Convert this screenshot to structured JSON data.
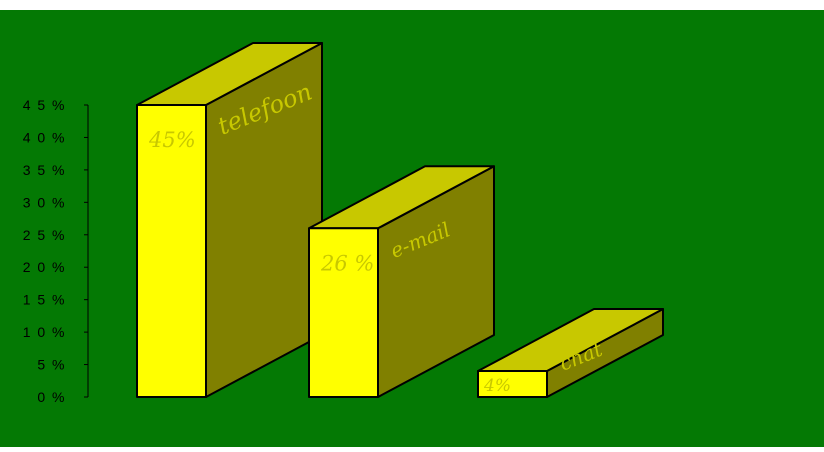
{
  "colors": {
    "background": "#047904",
    "bar_front": "#ffff00",
    "bar_top": "#c8c800",
    "bar_side": "#808000",
    "outline": "#000000",
    "label_text": "#c8c800"
  },
  "chart_data": {
    "type": "bar",
    "style": "3d",
    "categories": [
      "telefoon",
      "e-mail",
      "chat"
    ],
    "values": [
      45,
      26,
      4
    ],
    "value_labels": [
      "45%",
      "26 %",
      "4%"
    ],
    "ylim": [
      0,
      45
    ],
    "yticks": [
      {
        "value": 0,
        "label": "0 %"
      },
      {
        "value": 5,
        "label": "5 %"
      },
      {
        "value": 10,
        "label": "1 0 %"
      },
      {
        "value": 15,
        "label": "1 5 %"
      },
      {
        "value": 20,
        "label": "2 0 %"
      },
      {
        "value": 25,
        "label": "2 5 %"
      },
      {
        "value": 30,
        "label": "3 0 %"
      },
      {
        "value": 35,
        "label": "3 5 %"
      },
      {
        "value": 40,
        "label": "4 0 %"
      },
      {
        "value": 45,
        "label": "4 5 %"
      }
    ],
    "title": "",
    "xlabel": "",
    "ylabel": "",
    "grid": false,
    "legend": false
  }
}
